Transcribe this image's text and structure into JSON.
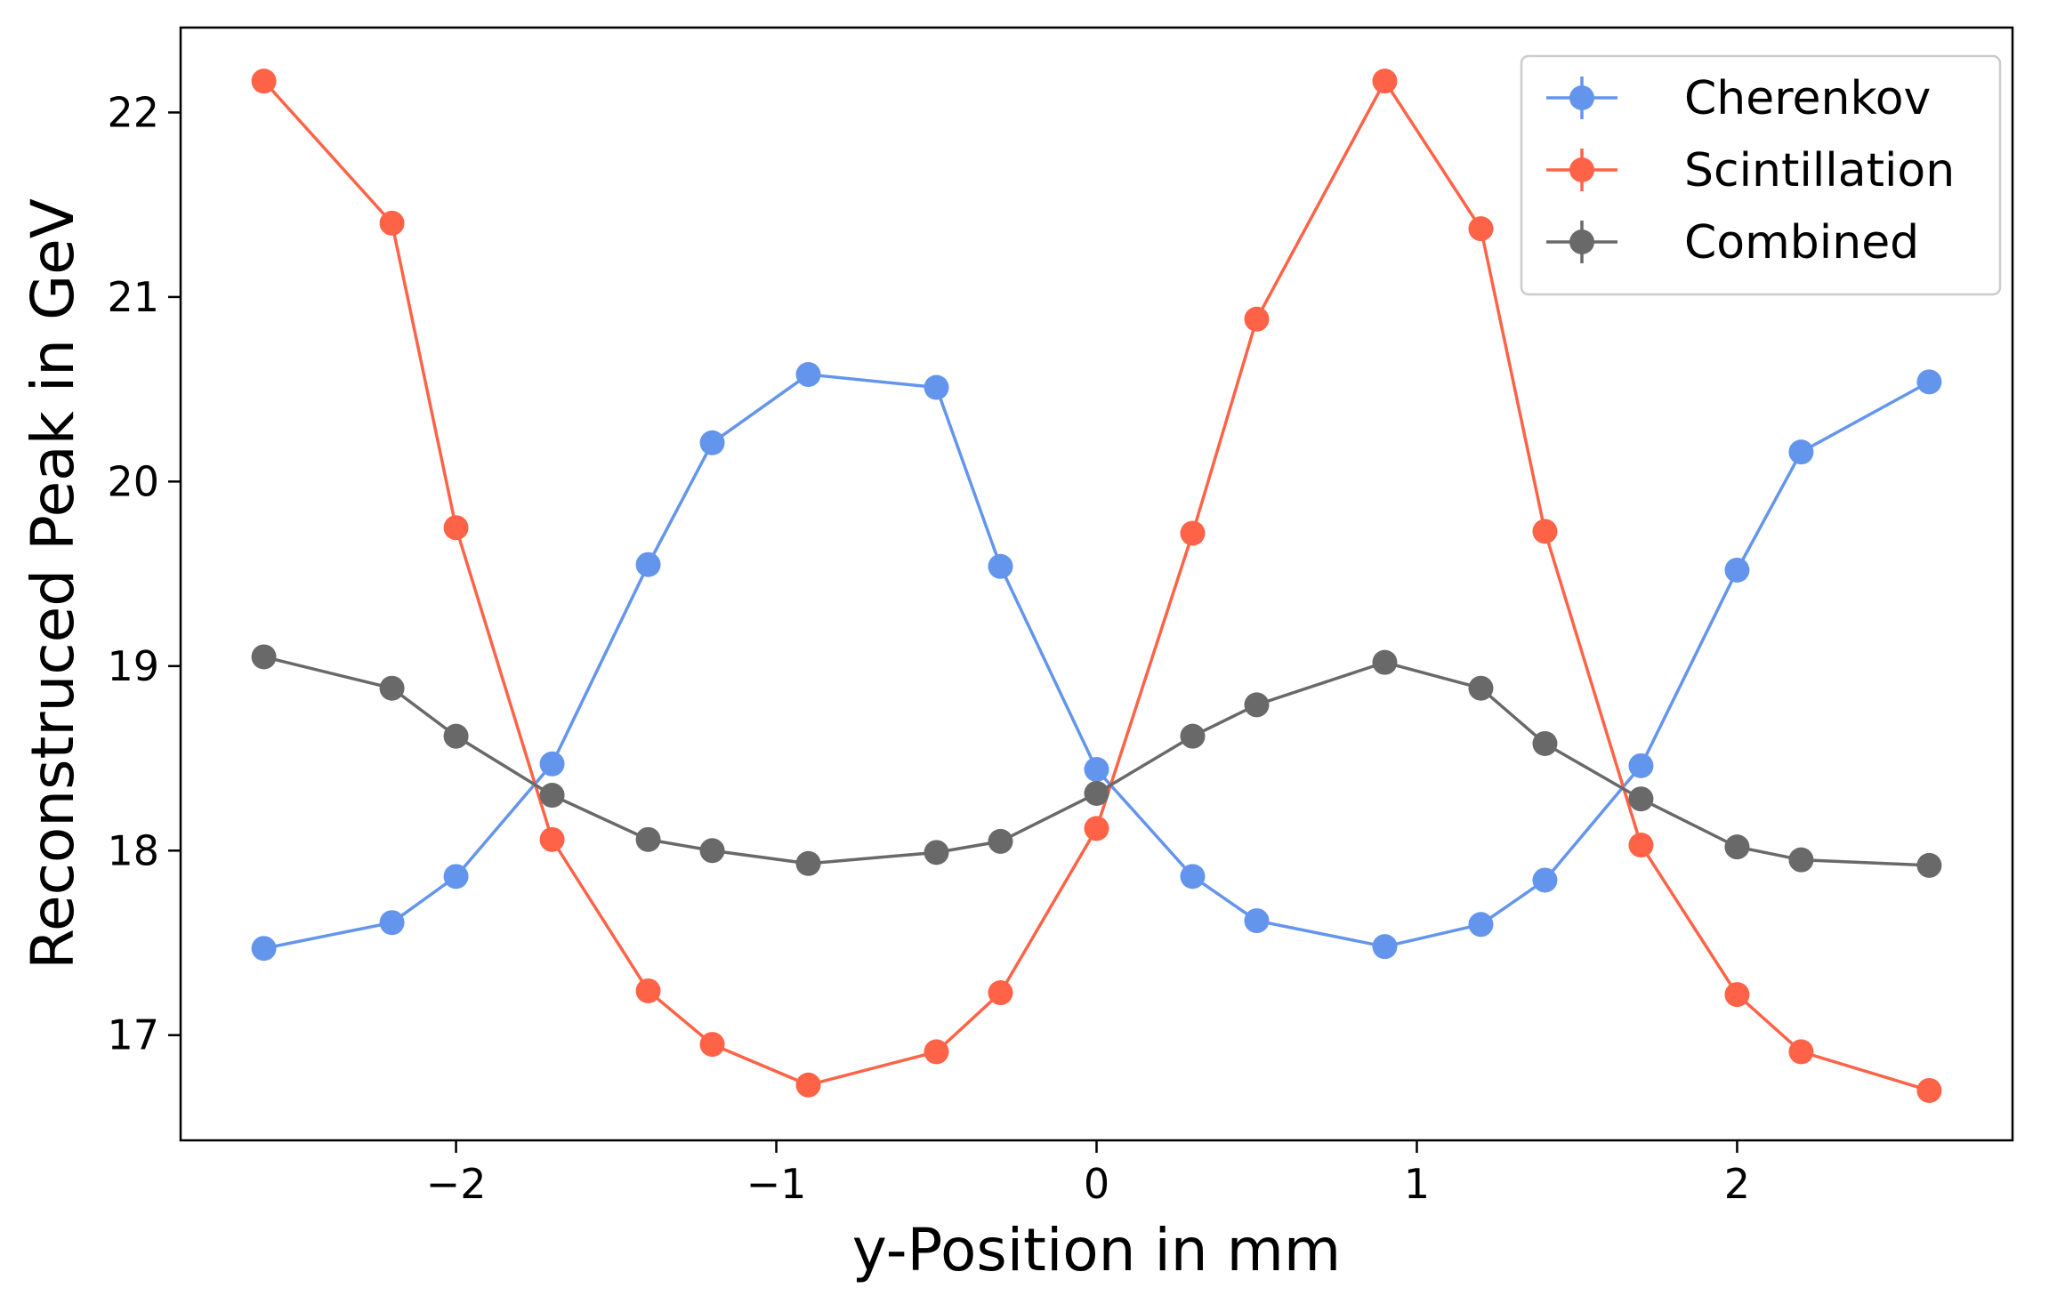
{
  "chart_data": {
    "type": "line",
    "title": "",
    "xlabel": "y-Position in mm",
    "ylabel": "Reconstruced Peak in GeV",
    "xlim": [
      -2.86,
      2.86
    ],
    "ylim": [
      16.43,
      22.46
    ],
    "xticks": [
      -2,
      -1,
      0,
      1,
      2
    ],
    "xtick_labels": [
      "−2",
      "−1",
      "0",
      "1",
      "2"
    ],
    "yticks": [
      17,
      18,
      19,
      20,
      21,
      22
    ],
    "ytick_labels": [
      "17",
      "18",
      "19",
      "20",
      "21",
      "22"
    ],
    "grid": false,
    "legend_position": "top-right",
    "x": [
      -2.6,
      -2.2,
      -2.0,
      -1.7,
      -1.4,
      -1.2,
      -0.9,
      -0.5,
      -0.3,
      0.0,
      0.3,
      0.5,
      0.9,
      1.2,
      1.4,
      1.7,
      2.0,
      2.2,
      2.6
    ],
    "series": [
      {
        "name": "Cherenkov",
        "color": "#6495ED",
        "values": [
          17.47,
          17.61,
          17.86,
          18.47,
          19.55,
          20.21,
          20.58,
          20.51,
          19.54,
          18.44,
          17.86,
          17.62,
          17.48,
          17.6,
          17.84,
          18.46,
          19.52,
          20.16,
          20.54
        ]
      },
      {
        "name": "Scintillation",
        "color": "#FF6347",
        "values": [
          22.17,
          21.4,
          19.75,
          18.06,
          17.24,
          16.95,
          16.73,
          16.91,
          17.23,
          18.12,
          19.72,
          20.88,
          22.17,
          21.37,
          19.73,
          18.03,
          17.22,
          16.91,
          16.7
        ]
      },
      {
        "name": "Combined",
        "color": "#696969",
        "values": [
          19.05,
          18.88,
          18.62,
          18.3,
          18.06,
          18.0,
          17.93,
          17.99,
          18.05,
          18.31,
          18.62,
          18.79,
          19.02,
          18.88,
          18.58,
          18.28,
          18.02,
          17.95,
          17.92
        ]
      }
    ]
  }
}
